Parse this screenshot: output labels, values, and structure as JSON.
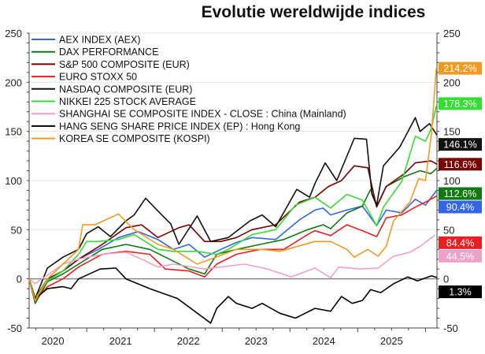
{
  "chart_data": {
    "type": "line",
    "title": "Evolutie wereldwijde indices",
    "xlabel": "",
    "ylabel": "",
    "xlim": [
      2020.15,
      2026.17
    ],
    "ylim": [
      -50,
      250
    ],
    "yticks": [
      -50,
      0,
      50,
      100,
      150,
      200,
      250
    ],
    "xticks": [
      {
        "label": "2020",
        "pos": 2020.5
      },
      {
        "label": "2021",
        "pos": 2021.5
      },
      {
        "label": "2022",
        "pos": 2022.5
      },
      {
        "label": "2023",
        "pos": 2023.5
      },
      {
        "label": "2024",
        "pos": 2024.5
      },
      {
        "label": "2025",
        "pos": 2025.5
      }
    ],
    "grid": true,
    "legend": "top-left",
    "series": [
      {
        "name": "AEX INDEX (AEX)",
        "color": "#3366e6",
        "end_label": "90.4%",
        "points": [
          [
            2020.15,
            0
          ],
          [
            2020.24,
            -20
          ],
          [
            2020.42,
            -2
          ],
          [
            2020.65,
            8
          ],
          [
            2020.88,
            20
          ],
          [
            2021.17,
            30
          ],
          [
            2021.47,
            42
          ],
          [
            2021.76,
            48
          ],
          [
            2022.05,
            40
          ],
          [
            2022.28,
            30
          ],
          [
            2022.51,
            35
          ],
          [
            2022.74,
            22
          ],
          [
            2022.98,
            30
          ],
          [
            2023.21,
            37
          ],
          [
            2023.44,
            42
          ],
          [
            2023.79,
            40
          ],
          [
            2024.14,
            60
          ],
          [
            2024.37,
            70
          ],
          [
            2024.49,
            72
          ],
          [
            2024.6,
            65
          ],
          [
            2024.84,
            70
          ],
          [
            2025.07,
            74
          ],
          [
            2025.28,
            54
          ],
          [
            2025.42,
            70
          ],
          [
            2025.65,
            67
          ],
          [
            2025.85,
            81
          ],
          [
            2026.0,
            75
          ],
          [
            2026.17,
            90.4
          ]
        ]
      },
      {
        "name": "DAX PERFORMANCE",
        "color": "#0f7a0f",
        "end_label": "112.6%",
        "points": [
          [
            2020.15,
            0
          ],
          [
            2020.24,
            -25
          ],
          [
            2020.42,
            -3
          ],
          [
            2020.65,
            5
          ],
          [
            2020.88,
            15
          ],
          [
            2021.23,
            30
          ],
          [
            2021.58,
            35
          ],
          [
            2021.93,
            30
          ],
          [
            2022.22,
            20
          ],
          [
            2022.51,
            10
          ],
          [
            2022.74,
            5
          ],
          [
            2022.92,
            25
          ],
          [
            2023.21,
            30
          ],
          [
            2023.56,
            35
          ],
          [
            2023.91,
            40
          ],
          [
            2024.26,
            50
          ],
          [
            2024.49,
            55
          ],
          [
            2024.6,
            51
          ],
          [
            2024.84,
            67
          ],
          [
            2025.07,
            74
          ],
          [
            2025.19,
            91
          ],
          [
            2025.28,
            74
          ],
          [
            2025.42,
            94
          ],
          [
            2025.69,
            104
          ],
          [
            2025.92,
            110
          ],
          [
            2026.08,
            107
          ],
          [
            2026.17,
            112.6
          ]
        ]
      },
      {
        "name": "S&P 500 COMPOSITE (EUR)",
        "color": "#7a0000",
        "end_label": "116.6%",
        "points": [
          [
            2020.15,
            0
          ],
          [
            2020.24,
            -20
          ],
          [
            2020.42,
            0
          ],
          [
            2020.65,
            8
          ],
          [
            2020.88,
            20
          ],
          [
            2021.23,
            35
          ],
          [
            2021.58,
            52
          ],
          [
            2021.81,
            55
          ],
          [
            2022.05,
            42
          ],
          [
            2022.36,
            52
          ],
          [
            2022.51,
            55
          ],
          [
            2022.74,
            38
          ],
          [
            2022.98,
            38
          ],
          [
            2023.21,
            42
          ],
          [
            2023.44,
            50
          ],
          [
            2023.79,
            55
          ],
          [
            2024.14,
            78
          ],
          [
            2024.37,
            83
          ],
          [
            2024.57,
            94
          ],
          [
            2024.76,
            100
          ],
          [
            2024.95,
            115
          ],
          [
            2025.15,
            113
          ],
          [
            2025.28,
            73
          ],
          [
            2025.42,
            94
          ],
          [
            2025.69,
            107
          ],
          [
            2025.85,
            118
          ],
          [
            2026.08,
            120
          ],
          [
            2026.17,
            116.6
          ]
        ]
      },
      {
        "name": "EURO STOXX 50",
        "color": "#e62020",
        "end_label": "84.4%",
        "points": [
          [
            2020.15,
            0
          ],
          [
            2020.24,
            -22
          ],
          [
            2020.42,
            -8
          ],
          [
            2020.65,
            0
          ],
          [
            2020.88,
            12
          ],
          [
            2021.23,
            25
          ],
          [
            2021.58,
            28
          ],
          [
            2021.93,
            25
          ],
          [
            2022.16,
            10
          ],
          [
            2022.51,
            8
          ],
          [
            2022.74,
            2
          ],
          [
            2022.92,
            15
          ],
          [
            2023.21,
            25
          ],
          [
            2023.56,
            30
          ],
          [
            2023.91,
            30
          ],
          [
            2024.26,
            45
          ],
          [
            2024.37,
            49
          ],
          [
            2024.6,
            44
          ],
          [
            2024.84,
            55
          ],
          [
            2025.07,
            49
          ],
          [
            2025.28,
            43
          ],
          [
            2025.42,
            62
          ],
          [
            2025.65,
            65
          ],
          [
            2025.85,
            73
          ],
          [
            2026.0,
            78
          ],
          [
            2026.17,
            84.4
          ]
        ]
      },
      {
        "name": "NASDAQ COMPOSITE (EUR)",
        "color": "#111111",
        "end_label": "146.1%",
        "points": [
          [
            2020.15,
            0
          ],
          [
            2020.24,
            -20
          ],
          [
            2020.42,
            11
          ],
          [
            2020.65,
            22
          ],
          [
            2020.88,
            30
          ],
          [
            2021.0,
            46
          ],
          [
            2021.17,
            53
          ],
          [
            2021.35,
            43
          ],
          [
            2021.58,
            59
          ],
          [
            2021.7,
            65
          ],
          [
            2021.87,
            82
          ],
          [
            2022.05,
            69
          ],
          [
            2022.24,
            56
          ],
          [
            2022.36,
            35
          ],
          [
            2022.63,
            64
          ],
          [
            2022.83,
            38
          ],
          [
            2023.09,
            42
          ],
          [
            2023.41,
            59
          ],
          [
            2023.59,
            65
          ],
          [
            2023.79,
            53
          ],
          [
            2024.1,
            91
          ],
          [
            2024.29,
            83
          ],
          [
            2024.37,
            97
          ],
          [
            2024.52,
            118
          ],
          [
            2024.69,
            100
          ],
          [
            2024.95,
            143
          ],
          [
            2025.13,
            142
          ],
          [
            2025.21,
            86
          ],
          [
            2025.28,
            75
          ],
          [
            2025.38,
            115
          ],
          [
            2025.62,
            134
          ],
          [
            2025.85,
            164
          ],
          [
            2025.92,
            150
          ],
          [
            2026.06,
            158
          ],
          [
            2026.17,
            146.1
          ]
        ]
      },
      {
        "name": "NIKKEI 225 STOCK AVERAGE",
        "color": "#33dd33",
        "end_label": "178.3%",
        "points": [
          [
            2020.15,
            0
          ],
          [
            2020.24,
            -20
          ],
          [
            2020.42,
            -2
          ],
          [
            2020.65,
            8
          ],
          [
            2020.88,
            25
          ],
          [
            2021.0,
            38
          ],
          [
            2021.17,
            38
          ],
          [
            2021.47,
            40
          ],
          [
            2021.7,
            45
          ],
          [
            2022.05,
            30
          ],
          [
            2022.28,
            28
          ],
          [
            2022.63,
            28
          ],
          [
            2022.92,
            25
          ],
          [
            2023.09,
            30
          ],
          [
            2023.44,
            45
          ],
          [
            2023.79,
            50
          ],
          [
            2024.08,
            75
          ],
          [
            2024.37,
            83
          ],
          [
            2024.6,
            72
          ],
          [
            2024.84,
            86
          ],
          [
            2025.07,
            80
          ],
          [
            2025.28,
            54
          ],
          [
            2025.38,
            73
          ],
          [
            2025.65,
            99
          ],
          [
            2025.85,
            145
          ],
          [
            2026.0,
            140
          ],
          [
            2026.08,
            152
          ],
          [
            2026.17,
            178.3
          ]
        ]
      },
      {
        "name": "SHANGHAI SE COMPOSITE INDEX - CLOSE : China (Mainland)",
        "color": "#f0a0c8",
        "end_label": "44.5%",
        "points": [
          [
            2020.15,
            0
          ],
          [
            2020.24,
            -5
          ],
          [
            2020.65,
            15
          ],
          [
            2020.88,
            20
          ],
          [
            2021.23,
            25
          ],
          [
            2021.58,
            27
          ],
          [
            2021.81,
            20
          ],
          [
            2022.05,
            12
          ],
          [
            2022.28,
            15
          ],
          [
            2022.74,
            10
          ],
          [
            2022.98,
            12
          ],
          [
            2023.33,
            15
          ],
          [
            2023.67,
            10
          ],
          [
            2024.02,
            2
          ],
          [
            2024.37,
            11
          ],
          [
            2024.6,
            1
          ],
          [
            2024.72,
            12
          ],
          [
            2025.03,
            10
          ],
          [
            2025.3,
            11
          ],
          [
            2025.53,
            23
          ],
          [
            2025.77,
            27
          ],
          [
            2025.92,
            33
          ],
          [
            2026.14,
            44.5
          ]
        ]
      },
      {
        "name": "HANG SENG SHARE PRICE INDEX (EP) : Hong Kong",
        "color": "#000000",
        "end_label": "1.3%",
        "points": [
          [
            2020.15,
            0
          ],
          [
            2020.24,
            -20
          ],
          [
            2020.42,
            -10
          ],
          [
            2020.65,
            -8
          ],
          [
            2020.77,
            -10
          ],
          [
            2020.88,
            0
          ],
          [
            2021.2,
            10
          ],
          [
            2021.43,
            11
          ],
          [
            2021.58,
            0
          ],
          [
            2021.93,
            -10
          ],
          [
            2022.34,
            -20
          ],
          [
            2022.83,
            -45
          ],
          [
            2022.92,
            -30
          ],
          [
            2023.09,
            -18
          ],
          [
            2023.21,
            -25
          ],
          [
            2023.44,
            -30
          ],
          [
            2023.59,
            -25
          ],
          [
            2023.85,
            -35
          ],
          [
            2024.08,
            -40
          ],
          [
            2024.37,
            -30
          ],
          [
            2024.6,
            -33
          ],
          [
            2024.76,
            -18
          ],
          [
            2024.92,
            -25
          ],
          [
            2025.07,
            -22
          ],
          [
            2025.19,
            -11
          ],
          [
            2025.34,
            -14
          ],
          [
            2025.53,
            -5
          ],
          [
            2025.74,
            2
          ],
          [
            2025.88,
            -2
          ],
          [
            2026.09,
            3
          ],
          [
            2026.17,
            1.3
          ]
        ]
      },
      {
        "name": "KOREA SE COMPOSITE (KOSPI)",
        "color": "#f09a20",
        "end_label": "214.2%",
        "points": [
          [
            2020.15,
            0
          ],
          [
            2020.24,
            -22
          ],
          [
            2020.42,
            0
          ],
          [
            2020.65,
            15
          ],
          [
            2020.88,
            30
          ],
          [
            2020.94,
            55
          ],
          [
            2021.12,
            55
          ],
          [
            2021.47,
            66
          ],
          [
            2021.7,
            50
          ],
          [
            2022.05,
            35
          ],
          [
            2022.28,
            30
          ],
          [
            2022.63,
            15
          ],
          [
            2022.83,
            20
          ],
          [
            2023.21,
            30
          ],
          [
            2023.59,
            30
          ],
          [
            2023.85,
            28
          ],
          [
            2024.37,
            38
          ],
          [
            2024.6,
            38
          ],
          [
            2024.84,
            30
          ],
          [
            2024.95,
            22
          ],
          [
            2025.15,
            30
          ],
          [
            2025.3,
            23
          ],
          [
            2025.42,
            33
          ],
          [
            2025.53,
            59
          ],
          [
            2025.77,
            78
          ],
          [
            2025.9,
            102
          ],
          [
            2026.0,
            100
          ],
          [
            2026.09,
            148
          ],
          [
            2026.16,
            214.2
          ]
        ]
      }
    ]
  }
}
